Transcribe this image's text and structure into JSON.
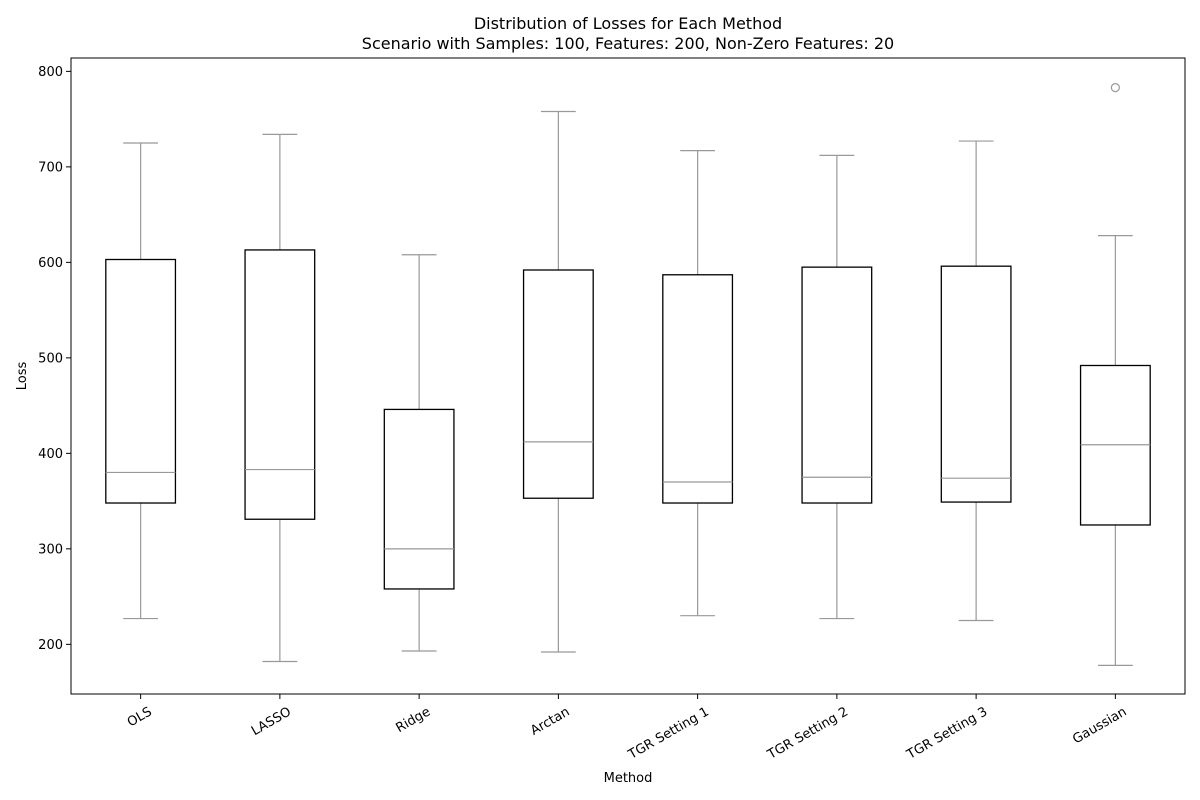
{
  "chart_data": {
    "type": "box",
    "title": "Distribution of Losses for Each Method",
    "subtitle": "Scenario with Samples: 100, Features: 200, Non-Zero Features: 20",
    "xlabel": "Method",
    "ylabel": "Loss",
    "ylim": [
      148,
      814
    ],
    "yticks": [
      200,
      300,
      400,
      500,
      600,
      700,
      800
    ],
    "categories": [
      "OLS",
      "LASSO",
      "Ridge",
      "Arctan",
      "TGR Setting 1",
      "TGR Setting 2",
      "TGR Setting 3",
      "Gaussian"
    ],
    "boxes": [
      {
        "whisker_low": 227,
        "q1": 348,
        "median": 380,
        "q3": 603,
        "whisker_high": 725,
        "outliers": []
      },
      {
        "whisker_low": 182,
        "q1": 331,
        "median": 383,
        "q3": 613,
        "whisker_high": 734,
        "outliers": []
      },
      {
        "whisker_low": 193,
        "q1": 258,
        "median": 300,
        "q3": 446,
        "whisker_high": 608,
        "outliers": []
      },
      {
        "whisker_low": 192,
        "q1": 353,
        "median": 412,
        "q3": 592,
        "whisker_high": 758,
        "outliers": []
      },
      {
        "whisker_low": 230,
        "q1": 348,
        "median": 370,
        "q3": 587,
        "whisker_high": 717,
        "outliers": []
      },
      {
        "whisker_low": 227,
        "q1": 348,
        "median": 375,
        "q3": 595,
        "whisker_high": 712,
        "outliers": []
      },
      {
        "whisker_low": 225,
        "q1": 349,
        "median": 374,
        "q3": 596,
        "whisker_high": 727,
        "outliers": []
      },
      {
        "whisker_low": 178,
        "q1": 325,
        "median": 409,
        "q3": 492,
        "whisker_high": 628,
        "outliers": [
          783
        ]
      }
    ],
    "colors": {
      "box_edge": "#000000",
      "whisker": "#999999",
      "median": "#999999",
      "outlier": "#999999"
    },
    "grid": false,
    "legend": "none"
  }
}
